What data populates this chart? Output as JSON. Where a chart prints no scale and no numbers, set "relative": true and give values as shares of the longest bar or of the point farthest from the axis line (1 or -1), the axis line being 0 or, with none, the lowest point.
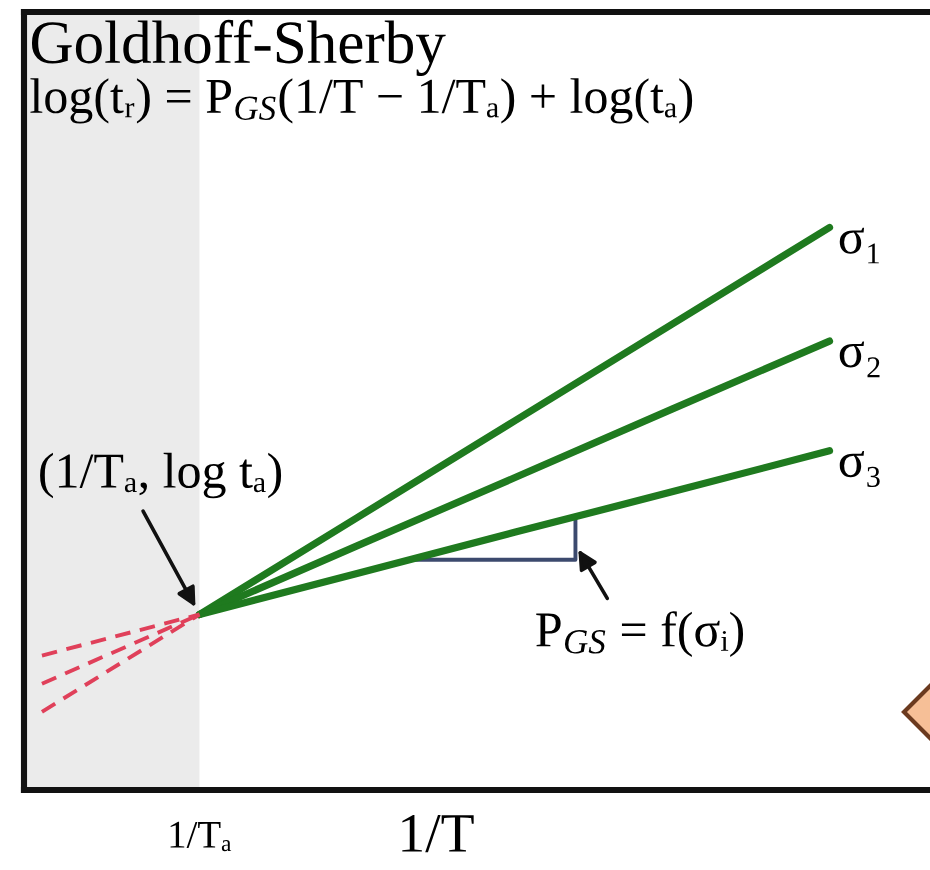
{
  "chart_data": {
    "type": "line",
    "relative": true,
    "title": "Goldhoff-Sherby",
    "subtitle": "log(tᵣ) = P$_{GS}$(1/T − 1/Tₐ) + log(tₐ)",
    "xlabel": "1/T",
    "line_style": "solid",
    "categories": [
      null,
      null,
      null,
      null,
      null,
      null
    ],
    "series": [
      {
        "name": "σ₁",
        "color": "#1f7a1f",
        "values": [
          null,
          0.312,
          0.484,
          0.656,
          0.828,
          1.0
        ]
      },
      {
        "name": "σ₂",
        "color": "#1f7a1f",
        "values": [
          null,
          0.312,
          0.434,
          0.555,
          0.677,
          0.798
        ]
      },
      {
        "name": "σ₃",
        "color": "#1f7a1f",
        "values": [
          null,
          0.312,
          0.385,
          0.458,
          0.53,
          0.603
        ]
      },
      {
        "color": "#e0405a",
        "line_style": "dashed",
        "values": [
          0.139,
          0.312,
          null,
          null,
          null,
          null
        ]
      },
      {
        "color": "#e0405a",
        "line_style": "dashed",
        "values": [
          0.189,
          0.312,
          null,
          null,
          null,
          null
        ]
      },
      {
        "color": "#e0405a",
        "line_style": "dashed",
        "values": [
          0.239,
          0.312,
          null,
          null,
          null,
          null
        ]
      }
    ],
    "annotations": [
      {
        "text": "(1/Tₐ, log tₐ)",
        "y": 0.312
      },
      "P$_{GS}$ = f(σᵢ)",
      "1/Tₐ"
    ]
  }
}
